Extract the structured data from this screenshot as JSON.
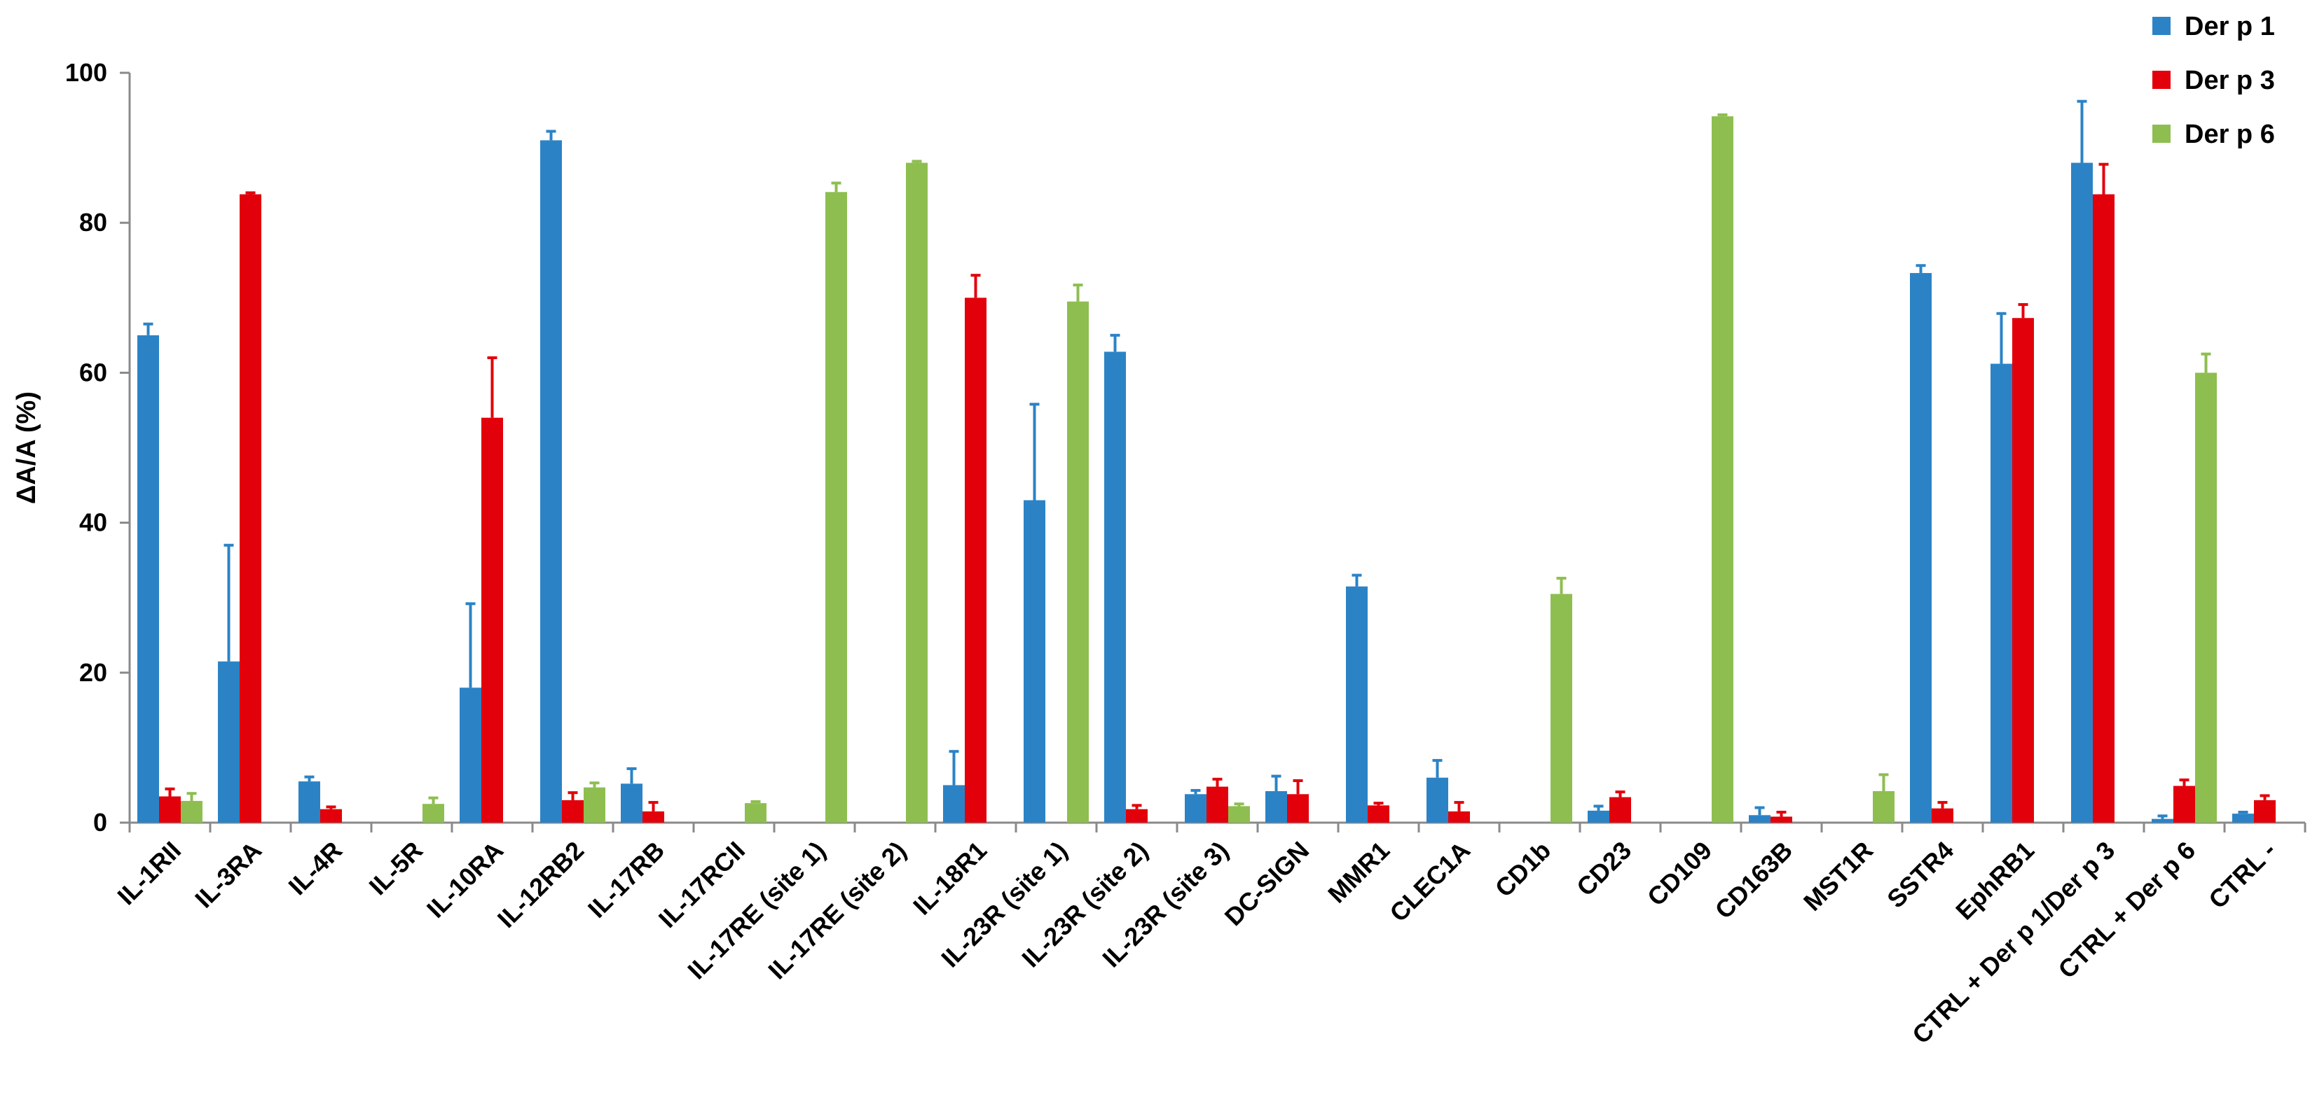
{
  "chart_data": {
    "type": "bar",
    "ylabel": "ΔA/A (%)",
    "ylim": [
      0,
      100
    ],
    "yticks": [
      0,
      20,
      40,
      60,
      80,
      100
    ],
    "legend_position": "top-right",
    "grid": false,
    "categories": [
      "IL-1RII",
      "IL-3RA",
      "IL-4R",
      "IL-5R",
      "IL-10RA",
      "IL-12RB2",
      "IL-17RB",
      "IL-17RCII",
      "IL-17RE (site 1)",
      "IL-17RE (site 2)",
      "IL-18R1",
      "IL-23R (site 1)",
      "IL-23R (site 2)",
      "IL-23R (site 3)",
      "DC-SIGN",
      "MMR1",
      "CLEC1A",
      "CD1b",
      "CD23",
      "CD109",
      "CD163B",
      "MST1R",
      "SSTR4",
      "EphRB1",
      "CTRL + Der p 1/Der p 3",
      "CTRL + Der p 6",
      "CTRL -"
    ],
    "series": [
      {
        "name": "Der p 1",
        "color": "#2B83C6",
        "values": [
          65,
          21.5,
          5.5,
          null,
          18,
          91,
          5.2,
          null,
          null,
          null,
          5,
          43,
          62.8,
          3.8,
          4.2,
          31.5,
          6,
          null,
          1.6,
          null,
          1,
          null,
          73.3,
          61.2,
          88,
          0.5,
          1.2
        ],
        "errors": [
          1.5,
          15.5,
          0.6,
          null,
          11.2,
          1.2,
          2,
          null,
          null,
          null,
          4.5,
          12.8,
          2.2,
          0.5,
          2,
          1.5,
          2.3,
          null,
          0.6,
          null,
          1,
          null,
          1,
          6.7,
          8.2,
          0.4,
          0.2
        ]
      },
      {
        "name": "Der p 3",
        "color": "#E2000A",
        "values": [
          3.5,
          83.8,
          1.8,
          null,
          54,
          3,
          1.5,
          null,
          null,
          null,
          70,
          null,
          1.8,
          4.8,
          3.8,
          2.3,
          1.5,
          null,
          3.4,
          null,
          0.8,
          null,
          1.9,
          67.3,
          83.8,
          4.9,
          3
        ],
        "errors": [
          1,
          0.2,
          0.3,
          null,
          8,
          1,
          1.2,
          null,
          null,
          null,
          3,
          null,
          0.5,
          1,
          1.8,
          0.3,
          1.2,
          null,
          0.7,
          null,
          0.6,
          null,
          0.8,
          1.8,
          4,
          0.8,
          0.6
        ]
      },
      {
        "name": "Der p 6",
        "color": "#8EBE50",
        "values": [
          2.9,
          null,
          null,
          2.5,
          null,
          4.7,
          null,
          2.6,
          84.1,
          88,
          null,
          69.5,
          null,
          2.2,
          null,
          null,
          null,
          30.5,
          null,
          94.2,
          null,
          4.2,
          null,
          null,
          null,
          60,
          null
        ],
        "errors": [
          1,
          null,
          null,
          0.8,
          null,
          0.6,
          null,
          0.2,
          1.2,
          0.2,
          null,
          2.2,
          null,
          0.3,
          null,
          null,
          null,
          2.1,
          null,
          0.2,
          null,
          2.2,
          null,
          null,
          null,
          2.5,
          null
        ]
      }
    ]
  }
}
